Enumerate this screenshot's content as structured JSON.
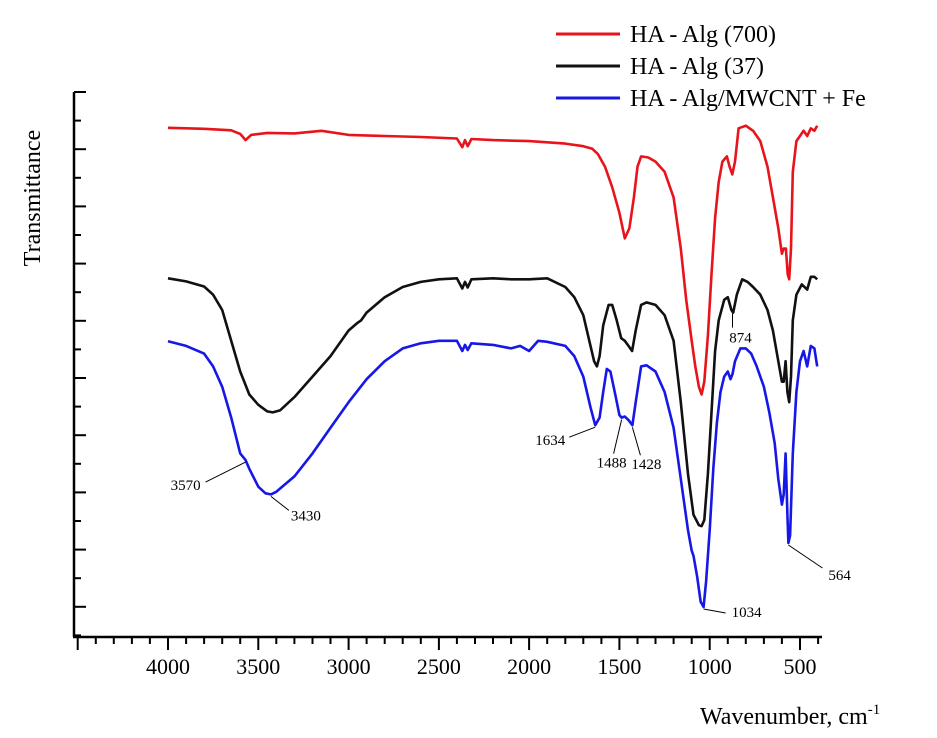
{
  "chart_data": {
    "type": "line",
    "title": "",
    "xlabel": "Wavenumber, cm",
    "xlabel_sup": "-1",
    "ylabel": "Transmittance",
    "x_reversed": true,
    "xlim": [
      4000,
      400
    ],
    "ylim": [
      0,
      1
    ],
    "xticks": [
      "4000",
      "3500",
      "3000",
      "2500",
      "2000",
      "1500",
      "1000",
      "500"
    ],
    "y_tick_labels_shown": false,
    "grid": false,
    "legend_position": "top-right",
    "series": [
      {
        "name": "HA - Alg (700)",
        "color": "#e8141b",
        "points": [
          [
            4000,
            0.936
          ],
          [
            3800,
            0.934
          ],
          [
            3700,
            0.932
          ],
          [
            3650,
            0.931
          ],
          [
            3600,
            0.924
          ],
          [
            3570,
            0.912
          ],
          [
            3540,
            0.922
          ],
          [
            3450,
            0.926
          ],
          [
            3300,
            0.925
          ],
          [
            3150,
            0.93
          ],
          [
            3000,
            0.922
          ],
          [
            2800,
            0.92
          ],
          [
            2600,
            0.918
          ],
          [
            2400,
            0.915
          ],
          [
            2370,
            0.898
          ],
          [
            2355,
            0.912
          ],
          [
            2340,
            0.9
          ],
          [
            2320,
            0.914
          ],
          [
            2200,
            0.912
          ],
          [
            2000,
            0.91
          ],
          [
            1800,
            0.905
          ],
          [
            1700,
            0.9
          ],
          [
            1650,
            0.895
          ],
          [
            1620,
            0.885
          ],
          [
            1580,
            0.86
          ],
          [
            1540,
            0.82
          ],
          [
            1500,
            0.77
          ],
          [
            1470,
            0.72
          ],
          [
            1445,
            0.74
          ],
          [
            1420,
            0.8
          ],
          [
            1400,
            0.86
          ],
          [
            1380,
            0.88
          ],
          [
            1340,
            0.878
          ],
          [
            1300,
            0.87
          ],
          [
            1250,
            0.85
          ],
          [
            1200,
            0.8
          ],
          [
            1160,
            0.7
          ],
          [
            1130,
            0.6
          ],
          [
            1100,
            0.52
          ],
          [
            1080,
            0.47
          ],
          [
            1060,
            0.43
          ],
          [
            1045,
            0.415
          ],
          [
            1030,
            0.44
          ],
          [
            1010,
            0.53
          ],
          [
            990,
            0.65
          ],
          [
            970,
            0.76
          ],
          [
            950,
            0.83
          ],
          [
            930,
            0.87
          ],
          [
            905,
            0.88
          ],
          [
            890,
            0.86
          ],
          [
            875,
            0.845
          ],
          [
            860,
            0.87
          ],
          [
            840,
            0.935
          ],
          [
            800,
            0.94
          ],
          [
            760,
            0.93
          ],
          [
            720,
            0.91
          ],
          [
            680,
            0.86
          ],
          [
            650,
            0.8
          ],
          [
            620,
            0.74
          ],
          [
            600,
            0.69
          ],
          [
            590,
            0.7
          ],
          [
            578,
            0.7
          ],
          [
            568,
            0.65
          ],
          [
            560,
            0.64
          ],
          [
            550,
            0.7
          ],
          [
            540,
            0.85
          ],
          [
            520,
            0.91
          ],
          [
            480,
            0.93
          ],
          [
            460,
            0.92
          ],
          [
            440,
            0.935
          ],
          [
            420,
            0.93
          ],
          [
            405,
            0.94
          ]
        ]
      },
      {
        "name": "HA - Alg (37)",
        "color": "#111111",
        "points": [
          [
            4000,
            0.642
          ],
          [
            3900,
            0.636
          ],
          [
            3800,
            0.626
          ],
          [
            3750,
            0.61
          ],
          [
            3700,
            0.58
          ],
          [
            3650,
            0.52
          ],
          [
            3600,
            0.46
          ],
          [
            3550,
            0.415
          ],
          [
            3500,
            0.395
          ],
          [
            3450,
            0.382
          ],
          [
            3420,
            0.38
          ],
          [
            3380,
            0.384
          ],
          [
            3300,
            0.41
          ],
          [
            3200,
            0.45
          ],
          [
            3100,
            0.49
          ],
          [
            3000,
            0.54
          ],
          [
            2950,
            0.555
          ],
          [
            2930,
            0.56
          ],
          [
            2900,
            0.575
          ],
          [
            2800,
            0.605
          ],
          [
            2700,
            0.625
          ],
          [
            2600,
            0.635
          ],
          [
            2500,
            0.64
          ],
          [
            2400,
            0.642
          ],
          [
            2370,
            0.622
          ],
          [
            2355,
            0.635
          ],
          [
            2340,
            0.624
          ],
          [
            2320,
            0.64
          ],
          [
            2200,
            0.642
          ],
          [
            2100,
            0.64
          ],
          [
            2000,
            0.64
          ],
          [
            1900,
            0.642
          ],
          [
            1800,
            0.625
          ],
          [
            1750,
            0.605
          ],
          [
            1700,
            0.57
          ],
          [
            1660,
            0.51
          ],
          [
            1640,
            0.48
          ],
          [
            1625,
            0.47
          ],
          [
            1610,
            0.49
          ],
          [
            1590,
            0.55
          ],
          [
            1560,
            0.59
          ],
          [
            1540,
            0.59
          ],
          [
            1515,
            0.56
          ],
          [
            1490,
            0.525
          ],
          [
            1470,
            0.52
          ],
          [
            1450,
            0.51
          ],
          [
            1430,
            0.5
          ],
          [
            1410,
            0.54
          ],
          [
            1380,
            0.59
          ],
          [
            1350,
            0.595
          ],
          [
            1300,
            0.59
          ],
          [
            1250,
            0.57
          ],
          [
            1200,
            0.52
          ],
          [
            1160,
            0.4
          ],
          [
            1120,
            0.26
          ],
          [
            1090,
            0.18
          ],
          [
            1060,
            0.16
          ],
          [
            1045,
            0.158
          ],
          [
            1030,
            0.17
          ],
          [
            1010,
            0.26
          ],
          [
            990,
            0.38
          ],
          [
            970,
            0.5
          ],
          [
            950,
            0.56
          ],
          [
            920,
            0.6
          ],
          [
            900,
            0.605
          ],
          [
            880,
            0.58
          ],
          [
            870,
            0.575
          ],
          [
            850,
            0.61
          ],
          [
            820,
            0.64
          ],
          [
            790,
            0.635
          ],
          [
            760,
            0.625
          ],
          [
            720,
            0.61
          ],
          [
            680,
            0.58
          ],
          [
            650,
            0.54
          ],
          [
            620,
            0.48
          ],
          [
            600,
            0.44
          ],
          [
            590,
            0.44
          ],
          [
            580,
            0.48
          ],
          [
            570,
            0.42
          ],
          [
            560,
            0.4
          ],
          [
            550,
            0.45
          ],
          [
            540,
            0.56
          ],
          [
            520,
            0.61
          ],
          [
            490,
            0.63
          ],
          [
            460,
            0.62
          ],
          [
            440,
            0.645
          ],
          [
            420,
            0.645
          ],
          [
            405,
            0.64
          ]
        ]
      },
      {
        "name": "HA - Alg/MWCNT + Fe",
        "color": "#1717e6",
        "points": [
          [
            4000,
            0.519
          ],
          [
            3900,
            0.51
          ],
          [
            3800,
            0.495
          ],
          [
            3750,
            0.47
          ],
          [
            3700,
            0.43
          ],
          [
            3650,
            0.37
          ],
          [
            3600,
            0.3
          ],
          [
            3570,
            0.287
          ],
          [
            3550,
            0.27
          ],
          [
            3500,
            0.235
          ],
          [
            3460,
            0.222
          ],
          [
            3430,
            0.22
          ],
          [
            3400,
            0.225
          ],
          [
            3300,
            0.255
          ],
          [
            3200,
            0.3
          ],
          [
            3100,
            0.35
          ],
          [
            3000,
            0.4
          ],
          [
            2900,
            0.445
          ],
          [
            2800,
            0.48
          ],
          [
            2700,
            0.505
          ],
          [
            2600,
            0.515
          ],
          [
            2500,
            0.52
          ],
          [
            2400,
            0.52
          ],
          [
            2370,
            0.5
          ],
          [
            2355,
            0.512
          ],
          [
            2340,
            0.502
          ],
          [
            2320,
            0.515
          ],
          [
            2200,
            0.512
          ],
          [
            2100,
            0.505
          ],
          [
            2050,
            0.51
          ],
          [
            2000,
            0.5
          ],
          [
            1950,
            0.52
          ],
          [
            1900,
            0.518
          ],
          [
            1800,
            0.51
          ],
          [
            1750,
            0.49
          ],
          [
            1700,
            0.45
          ],
          [
            1660,
            0.39
          ],
          [
            1634,
            0.355
          ],
          [
            1610,
            0.37
          ],
          [
            1590,
            0.42
          ],
          [
            1570,
            0.465
          ],
          [
            1550,
            0.46
          ],
          [
            1520,
            0.41
          ],
          [
            1500,
            0.375
          ],
          [
            1488,
            0.37
          ],
          [
            1470,
            0.372
          ],
          [
            1450,
            0.365
          ],
          [
            1428,
            0.355
          ],
          [
            1410,
            0.4
          ],
          [
            1380,
            0.47
          ],
          [
            1350,
            0.472
          ],
          [
            1300,
            0.46
          ],
          [
            1250,
            0.42
          ],
          [
            1200,
            0.35
          ],
          [
            1160,
            0.25
          ],
          [
            1120,
            0.15
          ],
          [
            1100,
            0.11
          ],
          [
            1090,
            0.1
          ],
          [
            1070,
            0.06
          ],
          [
            1050,
            0.01
          ],
          [
            1034,
            0.0
          ],
          [
            1020,
            0.05
          ],
          [
            1000,
            0.15
          ],
          [
            980,
            0.27
          ],
          [
            960,
            0.36
          ],
          [
            940,
            0.42
          ],
          [
            920,
            0.45
          ],
          [
            900,
            0.46
          ],
          [
            885,
            0.445
          ],
          [
            874,
            0.455
          ],
          [
            860,
            0.48
          ],
          [
            830,
            0.505
          ],
          [
            800,
            0.505
          ],
          [
            770,
            0.495
          ],
          [
            740,
            0.47
          ],
          [
            700,
            0.43
          ],
          [
            670,
            0.38
          ],
          [
            640,
            0.32
          ],
          [
            620,
            0.25
          ],
          [
            600,
            0.2
          ],
          [
            590,
            0.22
          ],
          [
            580,
            0.3
          ],
          [
            570,
            0.18
          ],
          [
            564,
            0.125
          ],
          [
            555,
            0.14
          ],
          [
            540,
            0.3
          ],
          [
            520,
            0.42
          ],
          [
            500,
            0.48
          ],
          [
            480,
            0.5
          ],
          [
            460,
            0.47
          ],
          [
            440,
            0.51
          ],
          [
            420,
            0.505
          ],
          [
            405,
            0.47
          ]
        ]
      }
    ],
    "annotations": [
      {
        "text": "3570",
        "series": 2,
        "x": 3570
      },
      {
        "text": "3430",
        "series": 2,
        "x": 3430
      },
      {
        "text": "1634",
        "series": 2,
        "x": 1634
      },
      {
        "text": "1488",
        "series": 2,
        "x": 1488
      },
      {
        "text": "1428",
        "series": 2,
        "x": 1428
      },
      {
        "text": "874",
        "series": 1,
        "x": 874
      },
      {
        "text": "1034",
        "series": 2,
        "x": 1034
      },
      {
        "text": "564",
        "series": 2,
        "x": 564
      }
    ]
  }
}
